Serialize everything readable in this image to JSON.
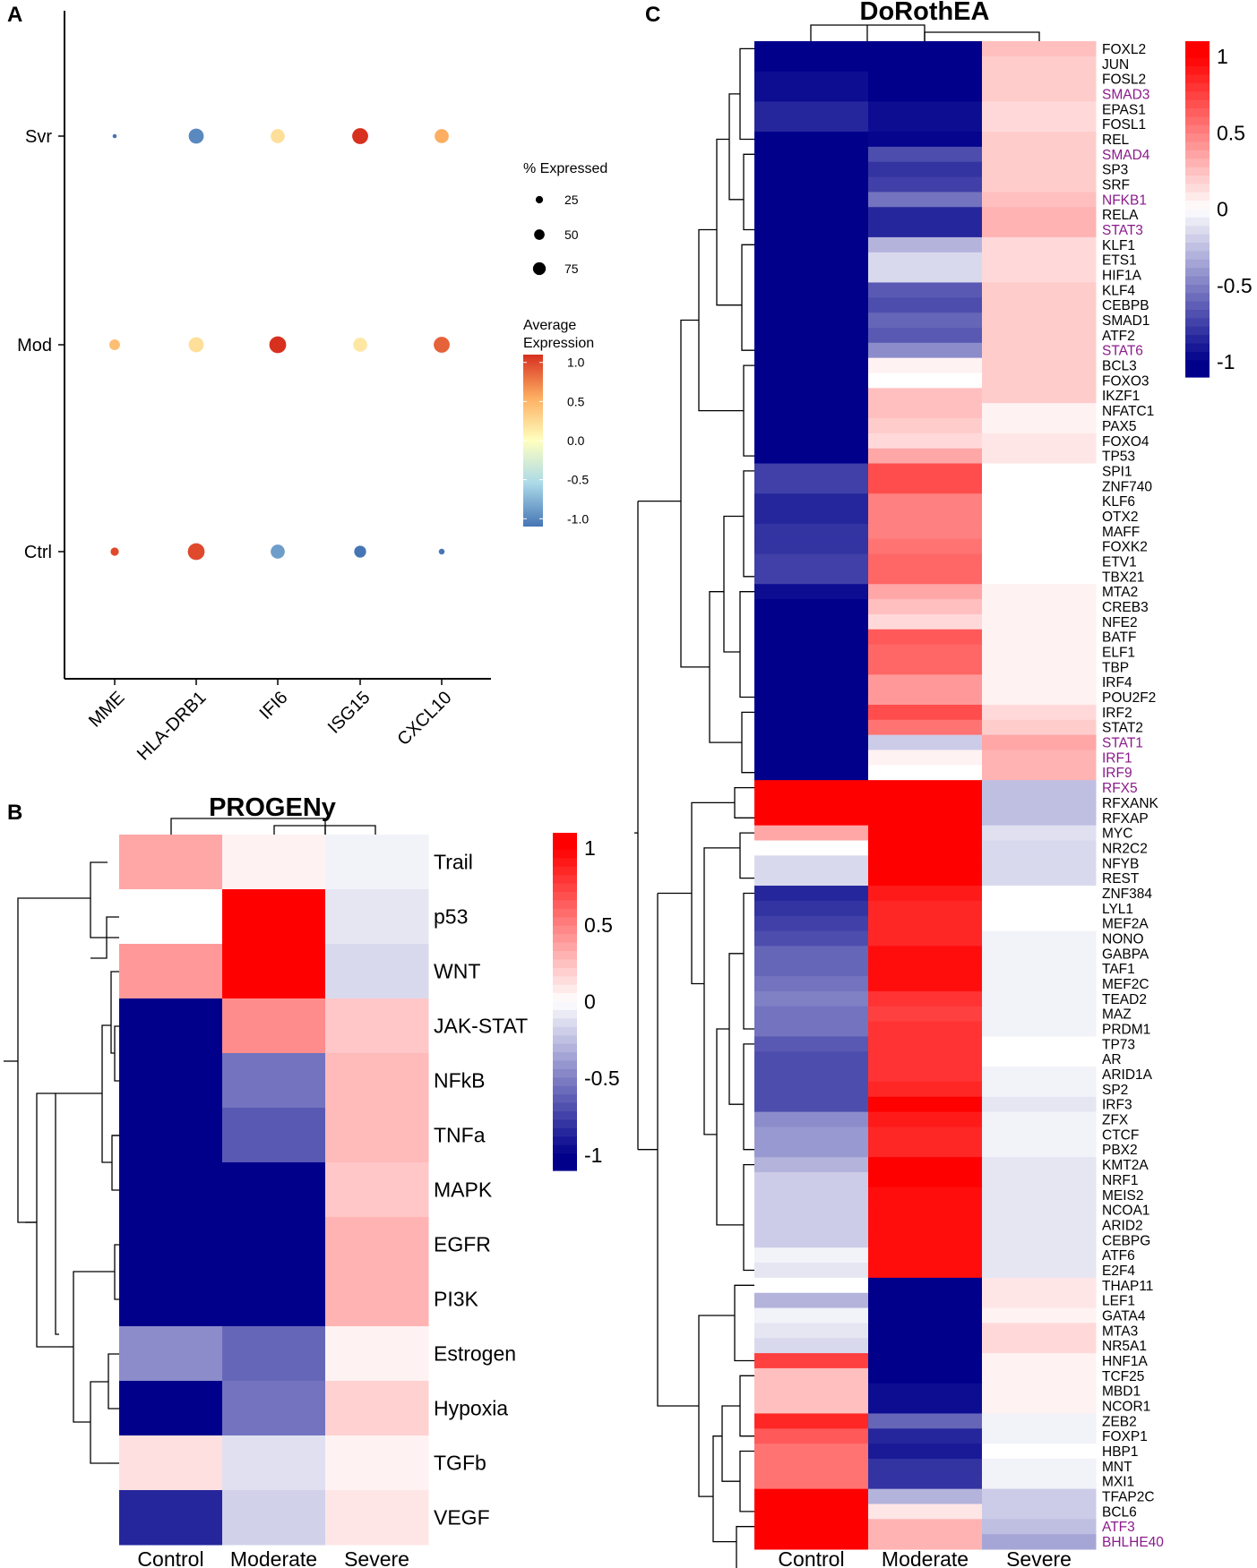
{
  "panels": {
    "a_label": "A",
    "b_label": "B",
    "c_label": "C"
  },
  "chart_data": [
    {
      "id": "A",
      "type": "scatter",
      "title": "",
      "categories": [
        "MME",
        "HLA-DRB1",
        "IFI6",
        "ISG15",
        "CXCL10"
      ],
      "groups": [
        "Svr",
        "Mod",
        "Ctrl"
      ],
      "pct_expressed": [
        [
          3,
          40,
          35,
          45,
          35
        ],
        [
          20,
          40,
          50,
          35,
          45
        ],
        [
          12,
          50,
          35,
          25,
          6
        ]
      ],
      "avg_expression": [
        [
          -1.0,
          -0.9,
          0.2,
          1.0,
          0.5
        ],
        [
          0.4,
          0.2,
          1.0,
          0.15,
          0.8
        ],
        [
          0.9,
          0.9,
          -0.8,
          -1.0,
          -1.1
        ]
      ],
      "size_legend": {
        "title": "% Expressed",
        "values": [
          25,
          50,
          75
        ]
      },
      "color_legend": {
        "title": "Average Expression",
        "ticks": [
          1.0,
          0.5,
          0.0,
          -0.5,
          -1.0
        ],
        "tick_labels": [
          "1.0",
          "0.5",
          "0.0",
          "-0.5",
          "-1.0"
        ],
        "colors": [
          "#d7301f",
          "#fdae61",
          "#ffffbf",
          "#abd9e9",
          "#4575b4"
        ]
      }
    },
    {
      "id": "B",
      "type": "heatmap",
      "title": "PROGENy",
      "columns": [
        "Control",
        "Moderate",
        "Severe"
      ],
      "rows": [
        "Trail",
        "p53",
        "WNT",
        "JAK-STAT",
        "NFkB",
        "TNFa",
        "MAPK",
        "EGFR",
        "PI3K",
        "Estrogen",
        "Hypoxia",
        "TGFb",
        "VEGF"
      ],
      "values": [
        [
          0.35,
          0.05,
          -0.05
        ],
        [
          0.0,
          1.0,
          -0.1
        ],
        [
          0.4,
          1.0,
          -0.15
        ],
        [
          -1.0,
          0.45,
          0.22
        ],
        [
          -1.0,
          -0.55,
          0.27
        ],
        [
          -1.0,
          -0.65,
          0.27
        ],
        [
          -1.0,
          -1.0,
          0.22
        ],
        [
          -1.0,
          -1.0,
          0.3
        ],
        [
          -1.0,
          -1.0,
          0.3
        ],
        [
          -0.45,
          -0.6,
          0.05
        ],
        [
          -1.0,
          -0.55,
          0.18
        ],
        [
          0.12,
          -0.12,
          0.05
        ],
        [
          -0.85,
          -0.18,
          0.1
        ]
      ],
      "legend_ticks": [
        1,
        0.5,
        0,
        -0.5,
        -1
      ],
      "legend_tick_labels": [
        "1",
        "0.5",
        "0",
        "-0.5",
        "-1"
      ],
      "colors": {
        "low": "#00008b",
        "mid": "#ffffff",
        "high": "#ff0000"
      }
    },
    {
      "id": "C",
      "type": "heatmap",
      "title": "DoRothEA",
      "columns": [
        "Control",
        "Moderate",
        "Severe"
      ],
      "highlight_color": "#8b1a8b",
      "highlighted": [
        "SMAD3",
        "SMAD4",
        "NFKB1",
        "STAT3",
        "STAT6",
        "STAT1",
        "IRF1",
        "IRF9",
        "RFX5",
        "ATF3",
        "BHLHE40"
      ],
      "rows": [
        "FOXL2",
        "JUN",
        "FOSL2",
        "SMAD3",
        "EPAS1",
        "FOSL1",
        "REL",
        "SMAD4",
        "SP3",
        "SRF",
        "NFKB1",
        "RELA",
        "STAT3",
        "KLF1",
        "ETS1",
        "HIF1A",
        "KLF4",
        "CEBPB",
        "SMAD1",
        "ATF2",
        "STAT6",
        "BCL3",
        "FOXO3",
        "IKZF1",
        "NFATC1",
        "PAX5",
        "FOXO4",
        "TP53",
        "SPI1",
        "ZNF740",
        "KLF6",
        "OTX2",
        "MAFF",
        "FOXK2",
        "ETV1",
        "TBX21",
        "MTA2",
        "CREB3",
        "NFE2",
        "BATF",
        "ELF1",
        "TBP",
        "IRF4",
        "POU2F2",
        "IRF2",
        "STAT2",
        "STAT1",
        "IRF1",
        "IRF9",
        "RFX5",
        "RFXANK",
        "RFXAP",
        "MYC",
        "NR2C2",
        "NFYB",
        "REST",
        "ZNF384",
        "LYL1",
        "MEF2A",
        "NONO",
        "GABPA",
        "TAF1",
        "MEF2C",
        "TEAD2",
        "MAZ",
        "PRDM1",
        "TP73",
        "AR",
        "ARID1A",
        "SP2",
        "IRF3",
        "ZFX",
        "CTCF",
        "PBX2",
        "KMT2A",
        "NRF1",
        "MEIS2",
        "NCOA1",
        "ARID2",
        "CEBPG",
        "ATF6",
        "E2F4",
        "THAP11",
        "LEF1",
        "GATA4",
        "MTA3",
        "NR5A1",
        "HNF1A",
        "TCF25",
        "MBD1",
        "NCOR1",
        "ZEB2",
        "FOXP1",
        "HBP1",
        "MNT",
        "MXI1",
        "TFAP2C",
        "BCL6",
        "ATF3",
        "BHLHE40"
      ],
      "values": [
        [
          -1.0,
          -1.0,
          0.25
        ],
        [
          -1.0,
          -1.0,
          0.2
        ],
        [
          -0.95,
          -1.0,
          0.2
        ],
        [
          -0.95,
          -1.0,
          0.2
        ],
        [
          -0.85,
          -0.95,
          0.15
        ],
        [
          -0.85,
          -0.95,
          0.15
        ],
        [
          -1.0,
          -0.98,
          0.2
        ],
        [
          -1.0,
          -0.7,
          0.2
        ],
        [
          -1.0,
          -0.8,
          0.2
        ],
        [
          -1.0,
          -0.75,
          0.2
        ],
        [
          -1.0,
          -0.55,
          0.25
        ],
        [
          -1.0,
          -0.85,
          0.3
        ],
        [
          -1.0,
          -0.85,
          0.3
        ],
        [
          -1.0,
          -0.3,
          0.15
        ],
        [
          -1.0,
          -0.15,
          0.15
        ],
        [
          -1.0,
          -0.15,
          0.15
        ],
        [
          -1.0,
          -0.65,
          0.2
        ],
        [
          -1.0,
          -0.7,
          0.2
        ],
        [
          -1.0,
          -0.6,
          0.2
        ],
        [
          -1.0,
          -0.65,
          0.2
        ],
        [
          -1.0,
          -0.45,
          0.2
        ],
        [
          -1.0,
          0.05,
          0.2
        ],
        [
          -1.0,
          0.0,
          0.2
        ],
        [
          -1.0,
          0.25,
          0.2
        ],
        [
          -1.0,
          0.25,
          0.05
        ],
        [
          -1.0,
          0.2,
          0.05
        ],
        [
          -1.0,
          0.15,
          0.1
        ],
        [
          -1.0,
          0.35,
          0.1
        ],
        [
          -0.75,
          0.7,
          0.0
        ],
        [
          -0.75,
          0.7,
          0.0
        ],
        [
          -0.85,
          0.5,
          0.0
        ],
        [
          -0.85,
          0.5,
          0.0
        ],
        [
          -0.8,
          0.5,
          0.0
        ],
        [
          -0.8,
          0.55,
          0.0
        ],
        [
          -0.75,
          0.6,
          0.0
        ],
        [
          -0.75,
          0.6,
          0.0
        ],
        [
          -0.95,
          0.35,
          0.05
        ],
        [
          -1.0,
          0.25,
          0.05
        ],
        [
          -1.0,
          0.15,
          0.05
        ],
        [
          -1.0,
          0.65,
          0.05
        ],
        [
          -1.0,
          0.6,
          0.05
        ],
        [
          -1.0,
          0.6,
          0.05
        ],
        [
          -1.0,
          0.4,
          0.05
        ],
        [
          -1.0,
          0.4,
          0.05
        ],
        [
          -1.0,
          0.7,
          0.15
        ],
        [
          -1.0,
          0.55,
          0.2
        ],
        [
          -1.0,
          -0.2,
          0.35
        ],
        [
          -1.0,
          0.05,
          0.3
        ],
        [
          -1.0,
          0.0,
          0.3
        ],
        [
          1.0,
          1.0,
          -0.25
        ],
        [
          1.0,
          1.0,
          -0.25
        ],
        [
          1.0,
          1.0,
          -0.25
        ],
        [
          0.35,
          1.0,
          -0.12
        ],
        [
          0.0,
          1.0,
          -0.15
        ],
        [
          -0.15,
          1.0,
          -0.15
        ],
        [
          -0.15,
          1.0,
          -0.15
        ],
        [
          -0.85,
          0.9,
          0.0
        ],
        [
          -0.8,
          0.85,
          0.0
        ],
        [
          -0.75,
          0.85,
          0.0
        ],
        [
          -0.7,
          0.85,
          -0.05
        ],
        [
          -0.6,
          0.95,
          -0.05
        ],
        [
          -0.6,
          0.95,
          -0.05
        ],
        [
          -0.55,
          0.95,
          -0.05
        ],
        [
          -0.5,
          0.8,
          -0.05
        ],
        [
          -0.55,
          0.75,
          -0.05
        ],
        [
          -0.55,
          0.8,
          -0.05
        ],
        [
          -0.65,
          0.8,
          0.0
        ],
        [
          -0.7,
          0.8,
          0.0
        ],
        [
          -0.7,
          0.8,
          -0.05
        ],
        [
          -0.7,
          0.85,
          -0.05
        ],
        [
          -0.7,
          1.0,
          -0.1
        ],
        [
          -0.45,
          0.9,
          -0.05
        ],
        [
          -0.4,
          0.85,
          -0.05
        ],
        [
          -0.4,
          0.85,
          -0.05
        ],
        [
          -0.3,
          1.0,
          -0.1
        ],
        [
          -0.2,
          1.0,
          -0.1
        ],
        [
          -0.2,
          0.95,
          -0.1
        ],
        [
          -0.2,
          0.95,
          -0.1
        ],
        [
          -0.2,
          0.95,
          -0.1
        ],
        [
          -0.2,
          0.95,
          -0.1
        ],
        [
          -0.05,
          0.95,
          -0.1
        ],
        [
          -0.1,
          0.95,
          -0.1
        ],
        [
          0.0,
          -1.0,
          0.1
        ],
        [
          -0.3,
          -1.0,
          0.1
        ],
        [
          -0.05,
          -1.0,
          0.05
        ],
        [
          -0.1,
          -1.0,
          0.15
        ],
        [
          -0.15,
          -1.0,
          0.15
        ],
        [
          0.75,
          -1.0,
          0.05
        ],
        [
          0.25,
          -1.0,
          0.05
        ],
        [
          0.25,
          -0.95,
          0.05
        ],
        [
          0.25,
          -0.95,
          0.05
        ],
        [
          0.85,
          -0.6,
          -0.05
        ],
        [
          0.65,
          -0.85,
          -0.05
        ],
        [
          0.55,
          -0.9,
          0.0
        ],
        [
          0.55,
          -0.8,
          -0.05
        ],
        [
          0.55,
          -0.8,
          -0.05
        ],
        [
          1.0,
          -0.3,
          -0.2
        ],
        [
          1.0,
          0.1,
          -0.2
        ],
        [
          1.0,
          0.3,
          -0.25
        ],
        [
          1.0,
          0.3,
          -0.35
        ]
      ],
      "legend_ticks": [
        1,
        0.5,
        0,
        -0.5,
        -1
      ],
      "legend_tick_labels": [
        "1",
        "0.5",
        "0",
        "-0.5",
        "-1"
      ],
      "colors": {
        "low": "#00008b",
        "mid": "#ffffff",
        "high": "#ff0000"
      }
    }
  ]
}
